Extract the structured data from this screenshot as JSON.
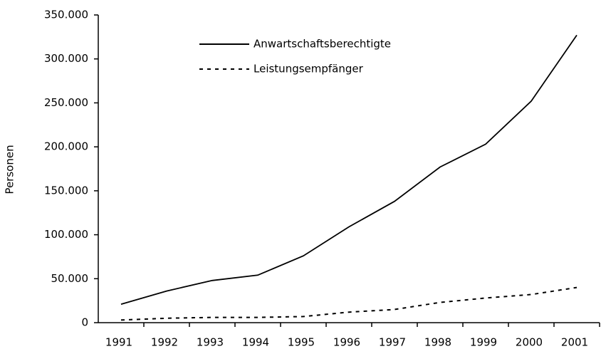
{
  "chart_data": {
    "type": "line",
    "y_label": "Personen",
    "categories": [
      "1991",
      "1992",
      "1993",
      "1994",
      "1995",
      "1996",
      "1997",
      "1998",
      "1999",
      "2000",
      "2001"
    ],
    "series": [
      {
        "name": "Anwartschaftsberechtigte",
        "color": "#000000",
        "dash": "solid",
        "values": [
          21000,
          36000,
          48000,
          54000,
          76000,
          109000,
          138000,
          177000,
          203000,
          252000,
          327000
        ]
      },
      {
        "name": "Leistungsempfänger",
        "color": "#000000",
        "dash": "dashed",
        "values": [
          3000,
          5000,
          6000,
          6000,
          7000,
          12000,
          15000,
          23000,
          28000,
          32000,
          40000
        ]
      }
    ],
    "ylim": [
      0,
      350000
    ],
    "yticks": [
      0,
      {
        "value": 50000,
        "label": "50.000"
      },
      {
        "value": 100000,
        "label": "100.000"
      },
      {
        "value": 150000,
        "label": "150.000"
      },
      {
        "value": 200000,
        "label": "200.000"
      },
      {
        "value": 250000,
        "label": "250.000"
      },
      {
        "value": 300000,
        "label": "300.000"
      },
      {
        "value": 350000,
        "label": "350.000"
      }
    ],
    "grid": false,
    "legend": "top"
  }
}
